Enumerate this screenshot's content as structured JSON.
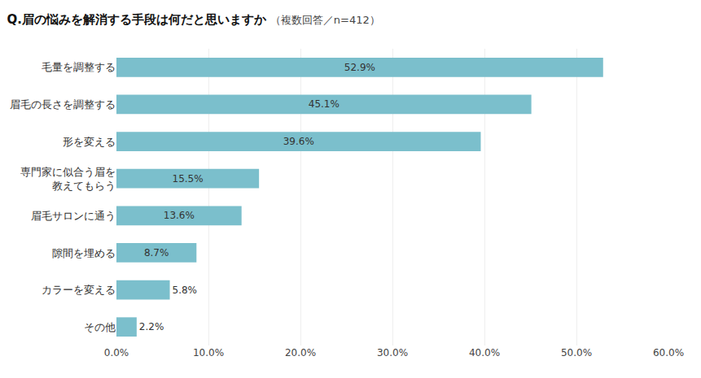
{
  "chart_data": {
    "type": "bar",
    "orientation": "horizontal",
    "title": "Q.眉の悩みを解消する手段は何だと思いますか",
    "subtitle": "（複数回答／n=412）",
    "categories": [
      "その他",
      "カラーを変える",
      "隙間を埋める",
      "眉毛サロンに通う",
      "専門家に似合う眉を\n教えてもらう",
      "形を変える",
      "眉毛の長さを調整する",
      "毛量を調整する"
    ],
    "values": [
      2.2,
      5.8,
      8.7,
      13.6,
      15.5,
      39.6,
      45.1,
      52.9
    ],
    "value_labels": [
      "2.2%",
      "5.8%",
      "8.7%",
      "13.6%",
      "15.5%",
      "39.6%",
      "45.1%",
      "52.9%"
    ],
    "data_labels": true,
    "color": "#7bbfcc",
    "xlim": [
      0,
      60
    ],
    "xticks": [
      {
        "value": 0,
        "label": "0.0%"
      },
      {
        "value": 10,
        "label": "10.0%"
      },
      {
        "value": 20,
        "label": "20.0%"
      },
      {
        "value": 30,
        "label": "30.0%"
      },
      {
        "value": 40,
        "label": "40.0%"
      },
      {
        "value": 50,
        "label": "50.0%"
      },
      {
        "value": 60,
        "label": "60.0%"
      }
    ],
    "grid": true
  }
}
